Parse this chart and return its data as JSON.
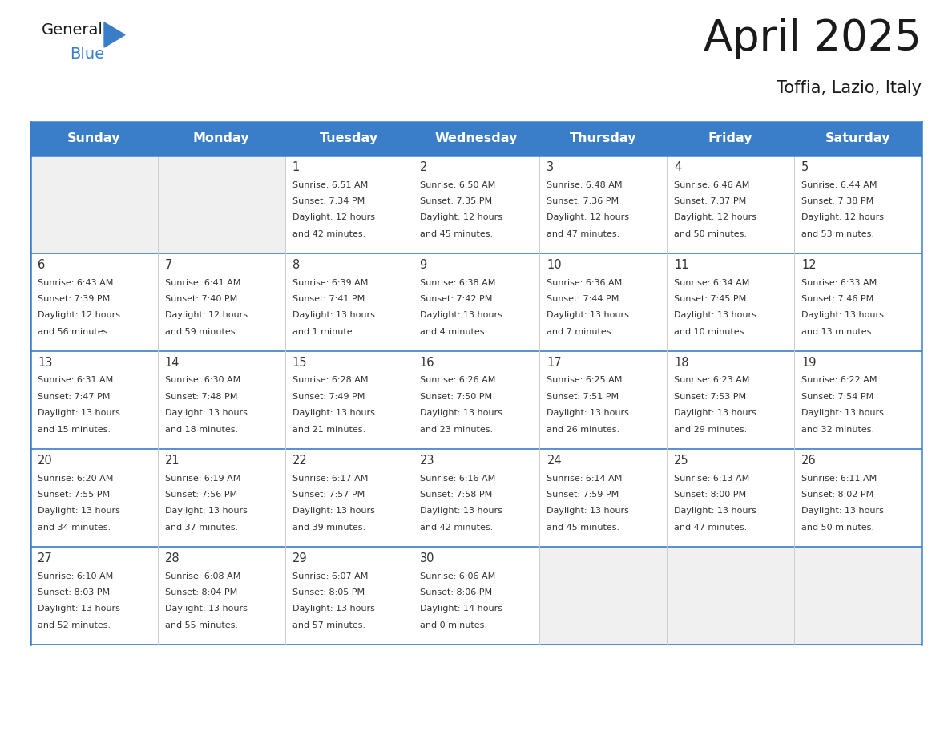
{
  "title": "April 2025",
  "subtitle": "Toffia, Lazio, Italy",
  "header_color": "#3A7DC9",
  "header_text_color": "#FFFFFF",
  "cell_bg_color": "#FFFFFF",
  "alt_cell_bg_color": "#F0F0F0",
  "row_sep_color": "#3A7DC9",
  "col_sep_color": "#CCCCCC",
  "text_color": "#333333",
  "days_of_week": [
    "Sunday",
    "Monday",
    "Tuesday",
    "Wednesday",
    "Thursday",
    "Friday",
    "Saturday"
  ],
  "calendar_data": [
    [
      {
        "day": "",
        "sunrise": "",
        "sunset": "",
        "daylight": ""
      },
      {
        "day": "",
        "sunrise": "",
        "sunset": "",
        "daylight": ""
      },
      {
        "day": "1",
        "sunrise": "6:51 AM",
        "sunset": "7:34 PM",
        "daylight": "12 hours and 42 minutes."
      },
      {
        "day": "2",
        "sunrise": "6:50 AM",
        "sunset": "7:35 PM",
        "daylight": "12 hours and 45 minutes."
      },
      {
        "day": "3",
        "sunrise": "6:48 AM",
        "sunset": "7:36 PM",
        "daylight": "12 hours and 47 minutes."
      },
      {
        "day": "4",
        "sunrise": "6:46 AM",
        "sunset": "7:37 PM",
        "daylight": "12 hours and 50 minutes."
      },
      {
        "day": "5",
        "sunrise": "6:44 AM",
        "sunset": "7:38 PM",
        "daylight": "12 hours and 53 minutes."
      }
    ],
    [
      {
        "day": "6",
        "sunrise": "6:43 AM",
        "sunset": "7:39 PM",
        "daylight": "12 hours and 56 minutes."
      },
      {
        "day": "7",
        "sunrise": "6:41 AM",
        "sunset": "7:40 PM",
        "daylight": "12 hours and 59 minutes."
      },
      {
        "day": "8",
        "sunrise": "6:39 AM",
        "sunset": "7:41 PM",
        "daylight": "13 hours and 1 minute."
      },
      {
        "day": "9",
        "sunrise": "6:38 AM",
        "sunset": "7:42 PM",
        "daylight": "13 hours and 4 minutes."
      },
      {
        "day": "10",
        "sunrise": "6:36 AM",
        "sunset": "7:44 PM",
        "daylight": "13 hours and 7 minutes."
      },
      {
        "day": "11",
        "sunrise": "6:34 AM",
        "sunset": "7:45 PM",
        "daylight": "13 hours and 10 minutes."
      },
      {
        "day": "12",
        "sunrise": "6:33 AM",
        "sunset": "7:46 PM",
        "daylight": "13 hours and 13 minutes."
      }
    ],
    [
      {
        "day": "13",
        "sunrise": "6:31 AM",
        "sunset": "7:47 PM",
        "daylight": "13 hours and 15 minutes."
      },
      {
        "day": "14",
        "sunrise": "6:30 AM",
        "sunset": "7:48 PM",
        "daylight": "13 hours and 18 minutes."
      },
      {
        "day": "15",
        "sunrise": "6:28 AM",
        "sunset": "7:49 PM",
        "daylight": "13 hours and 21 minutes."
      },
      {
        "day": "16",
        "sunrise": "6:26 AM",
        "sunset": "7:50 PM",
        "daylight": "13 hours and 23 minutes."
      },
      {
        "day": "17",
        "sunrise": "6:25 AM",
        "sunset": "7:51 PM",
        "daylight": "13 hours and 26 minutes."
      },
      {
        "day": "18",
        "sunrise": "6:23 AM",
        "sunset": "7:53 PM",
        "daylight": "13 hours and 29 minutes."
      },
      {
        "day": "19",
        "sunrise": "6:22 AM",
        "sunset": "7:54 PM",
        "daylight": "13 hours and 32 minutes."
      }
    ],
    [
      {
        "day": "20",
        "sunrise": "6:20 AM",
        "sunset": "7:55 PM",
        "daylight": "13 hours and 34 minutes."
      },
      {
        "day": "21",
        "sunrise": "6:19 AM",
        "sunset": "7:56 PM",
        "daylight": "13 hours and 37 minutes."
      },
      {
        "day": "22",
        "sunrise": "6:17 AM",
        "sunset": "7:57 PM",
        "daylight": "13 hours and 39 minutes."
      },
      {
        "day": "23",
        "sunrise": "6:16 AM",
        "sunset": "7:58 PM",
        "daylight": "13 hours and 42 minutes."
      },
      {
        "day": "24",
        "sunrise": "6:14 AM",
        "sunset": "7:59 PM",
        "daylight": "13 hours and 45 minutes."
      },
      {
        "day": "25",
        "sunrise": "6:13 AM",
        "sunset": "8:00 PM",
        "daylight": "13 hours and 47 minutes."
      },
      {
        "day": "26",
        "sunrise": "6:11 AM",
        "sunset": "8:02 PM",
        "daylight": "13 hours and 50 minutes."
      }
    ],
    [
      {
        "day": "27",
        "sunrise": "6:10 AM",
        "sunset": "8:03 PM",
        "daylight": "13 hours and 52 minutes."
      },
      {
        "day": "28",
        "sunrise": "6:08 AM",
        "sunset": "8:04 PM",
        "daylight": "13 hours and 55 minutes."
      },
      {
        "day": "29",
        "sunrise": "6:07 AM",
        "sunset": "8:05 PM",
        "daylight": "13 hours and 57 minutes."
      },
      {
        "day": "30",
        "sunrise": "6:06 AM",
        "sunset": "8:06 PM",
        "daylight": "14 hours and 0 minutes."
      },
      {
        "day": "",
        "sunrise": "",
        "sunset": "",
        "daylight": ""
      },
      {
        "day": "",
        "sunrise": "",
        "sunset": "",
        "daylight": ""
      },
      {
        "day": "",
        "sunrise": "",
        "sunset": "",
        "daylight": ""
      }
    ]
  ]
}
